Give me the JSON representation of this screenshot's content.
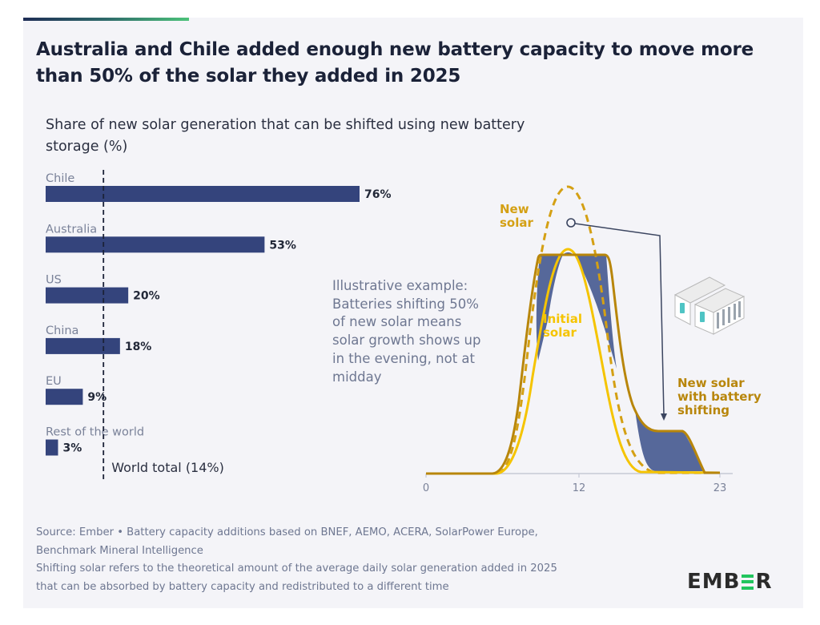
{
  "title": "Australia and Chile added enough new battery capacity to move more than 50% of the solar they added in 2025",
  "colors": {
    "bar": "#34447c",
    "new_solar": "#d4a014",
    "initial_solar": "#f5c400",
    "shifted_solar": "#b8860b",
    "shift_area": "#56689a",
    "accent_green": "#22c55e"
  },
  "chart_data": [
    {
      "type": "bar",
      "orientation": "horizontal",
      "title": "Share of new solar generation that can be shifted using new battery storage (%)",
      "categories": [
        "Chile",
        "Australia",
        "US",
        "China",
        "EU",
        "Rest of the world"
      ],
      "values": [
        76,
        53,
        20,
        18,
        9,
        3
      ],
      "value_labels": [
        "76%",
        "53%",
        "20%",
        "18%",
        "9%",
        "3%"
      ],
      "xlabel": "",
      "ylabel": "",
      "xlim": [
        0,
        80
      ],
      "grid": false,
      "reference_line": {
        "value": 14,
        "label": "World total (14%)",
        "style": "dashed"
      }
    },
    {
      "type": "line",
      "title": "Illustrative example",
      "annotation": "Illustrative example: Batteries shifting 50% of new solar means solar growth shows up in the evening, not at midday",
      "x_ticks": [
        "0",
        "12",
        "23"
      ],
      "xlim": [
        0,
        23
      ],
      "series": [
        {
          "name": "New solar",
          "style": "dashed",
          "shape": "bell curve peaking at midday, ~1.5x initial"
        },
        {
          "name": "Initial solar",
          "style": "solid",
          "shape": "bell curve peaking at midday"
        },
        {
          "name": "New solar with battery shifting",
          "style": "solid",
          "shape": "midday clipped to plateau, excess shifted into evening plateau"
        }
      ],
      "labels": {
        "new_solar": [
          "New",
          "solar"
        ],
        "initial_solar": [
          "Initial",
          "solar"
        ],
        "shifted": [
          "New solar",
          "with battery",
          "shifting"
        ]
      }
    }
  ],
  "illustration_text": [
    "Illustrative example:",
    "Batteries shifting 50%",
    "of new solar means",
    "solar growth shows up",
    "in the evening, not at",
    "midday"
  ],
  "footer": {
    "source_line1": "Source: Ember • Battery capacity additions based on BNEF, AEMO, ACERA, SolarPower Europe,",
    "source_line2": "Benchmark Mineral Intelligence",
    "note_line1": "Shifting solar refers to the theoretical amount of the average daily solar generation added in 2025",
    "note_line2": "that can be absorbed by battery capacity and redistributed to a different time"
  },
  "logo": {
    "left": "EMB",
    "middle_icon": "E-bars-icon",
    "right": "R"
  }
}
